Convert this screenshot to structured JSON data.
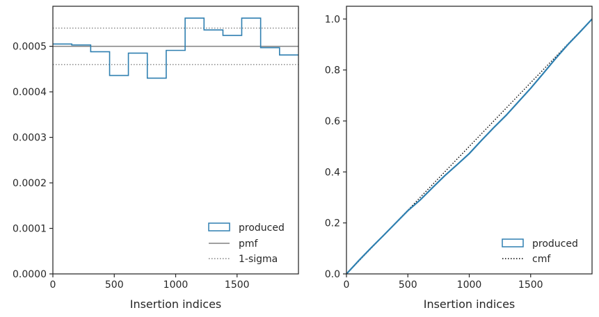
{
  "chart_data": [
    {
      "type": "histogram",
      "xlabel": "Insertion indices",
      "ylabel": "",
      "xlim": [
        0,
        2000
      ],
      "ylim": [
        0,
        0.000588
      ],
      "xticks": [
        0,
        500,
        1000,
        1500
      ],
      "xtick_labels": [
        "0",
        "500",
        "1000",
        "1500"
      ],
      "yticks": [
        0,
        0.0001,
        0.0002,
        0.0003,
        0.0004,
        0.0005
      ],
      "ytick_labels": [
        "0.0000",
        "0.0001",
        "0.0002",
        "0.0003",
        "0.0004",
        "0.0005"
      ],
      "bin_edges": [
        0,
        154,
        308,
        462,
        615,
        769,
        923,
        1077,
        1231,
        1385,
        1538,
        1692,
        1846,
        2000
      ],
      "series": [
        {
          "name": "produced",
          "style": "step",
          "color": "#2e7fb0",
          "values": [
            0.000505,
            0.000503,
            0.000488,
            0.000436,
            0.000485,
            0.00043,
            0.000491,
            0.000562,
            0.000536,
            0.000524,
            0.000562,
            0.000497,
            0.000481
          ]
        }
      ],
      "reference_lines": [
        {
          "name": "pmf",
          "y": 0.0005,
          "style": "solid",
          "color": "#808080"
        },
        {
          "name": "1-sigma",
          "y": 0.00054,
          "style": "dotted",
          "color": "#808080"
        },
        {
          "name": "1-sigma",
          "y": 0.00046,
          "style": "dotted",
          "color": "#808080",
          "no_legend": true
        }
      ],
      "legend": {
        "placement": "lower right",
        "entries": [
          {
            "label": "produced",
            "kind": "patch"
          },
          {
            "label": "pmf",
            "kind": "line-solid"
          },
          {
            "label": "1-sigma",
            "kind": "line-dotted"
          }
        ]
      }
    },
    {
      "type": "line",
      "xlabel": "Insertion indices",
      "ylabel": "",
      "xlim": [
        0,
        2000
      ],
      "ylim": [
        0,
        1.05
      ],
      "xticks": [
        0,
        500,
        1000,
        1500
      ],
      "xtick_labels": [
        "0",
        "500",
        "1000",
        "1500"
      ],
      "yticks": [
        0,
        0.2,
        0.4,
        0.6,
        0.8,
        1.0
      ],
      "ytick_labels": [
        "0.0",
        "0.2",
        "0.4",
        "0.6",
        "0.8",
        "1.0"
      ],
      "series": [
        {
          "name": "produced",
          "style": "step",
          "color": "#2e7fb0",
          "x": [
            0,
            100,
            200,
            300,
            400,
            500,
            600,
            700,
            800,
            900,
            1000,
            1100,
            1200,
            1300,
            1400,
            1500,
            1600,
            1700,
            1800,
            1900,
            2000
          ],
          "y": [
            0,
            0.052,
            0.102,
            0.15,
            0.199,
            0.248,
            0.29,
            0.338,
            0.385,
            0.428,
            0.472,
            0.524,
            0.574,
            0.622,
            0.675,
            0.728,
            0.785,
            0.843,
            0.898,
            0.948,
            1.0
          ]
        },
        {
          "name": "cmf",
          "style": "dotted",
          "color": "#000000",
          "x": [
            0,
            2000
          ],
          "y": [
            0,
            1.0
          ]
        }
      ],
      "legend": {
        "placement": "lower right",
        "entries": [
          {
            "label": "produced",
            "kind": "patch"
          },
          {
            "label": "cmf",
            "kind": "line-dotted"
          }
        ]
      }
    }
  ]
}
